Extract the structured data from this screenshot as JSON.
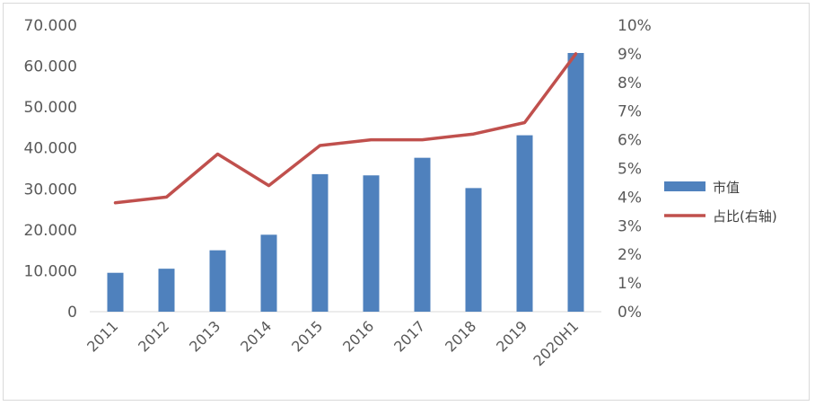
{
  "chart_data": {
    "type": "bar+line",
    "categories": [
      "2011",
      "2012",
      "2013",
      "2014",
      "2015",
      "2016",
      "2017",
      "2018",
      "2019",
      "2020H1"
    ],
    "series": [
      {
        "name": "市值",
        "type": "bar",
        "axis": "left",
        "color": "#4f81bd",
        "values": [
          9500,
          10500,
          15000,
          18800,
          33600,
          33300,
          37600,
          30200,
          43100,
          63200
        ]
      },
      {
        "name": "占比(右轴)",
        "type": "line",
        "axis": "right",
        "color": "#c0504d",
        "values": [
          3.8,
          4.0,
          5.5,
          4.4,
          5.8,
          6.0,
          6.0,
          6.2,
          6.6,
          9.0
        ]
      }
    ],
    "y_left": {
      "range": [
        0,
        70000
      ],
      "ticks": [
        0,
        10000,
        20000,
        30000,
        40000,
        50000,
        60000,
        70000
      ],
      "tick_labels": [
        "0",
        "10.000",
        "20.000",
        "30.000",
        "40.000",
        "50.000",
        "60.000",
        "70.000"
      ]
    },
    "y_right": {
      "range": [
        0,
        10
      ],
      "ticks": [
        0,
        1,
        2,
        3,
        4,
        5,
        6,
        7,
        8,
        9,
        10
      ],
      "tick_labels": [
        "0%",
        "1%",
        "2%",
        "3%",
        "4%",
        "5%",
        "6%",
        "7%",
        "8%",
        "9%",
        "10%"
      ]
    },
    "legend": {
      "position": "right",
      "entries": [
        "市值",
        "占比(右轴)"
      ]
    },
    "grid": false
  }
}
